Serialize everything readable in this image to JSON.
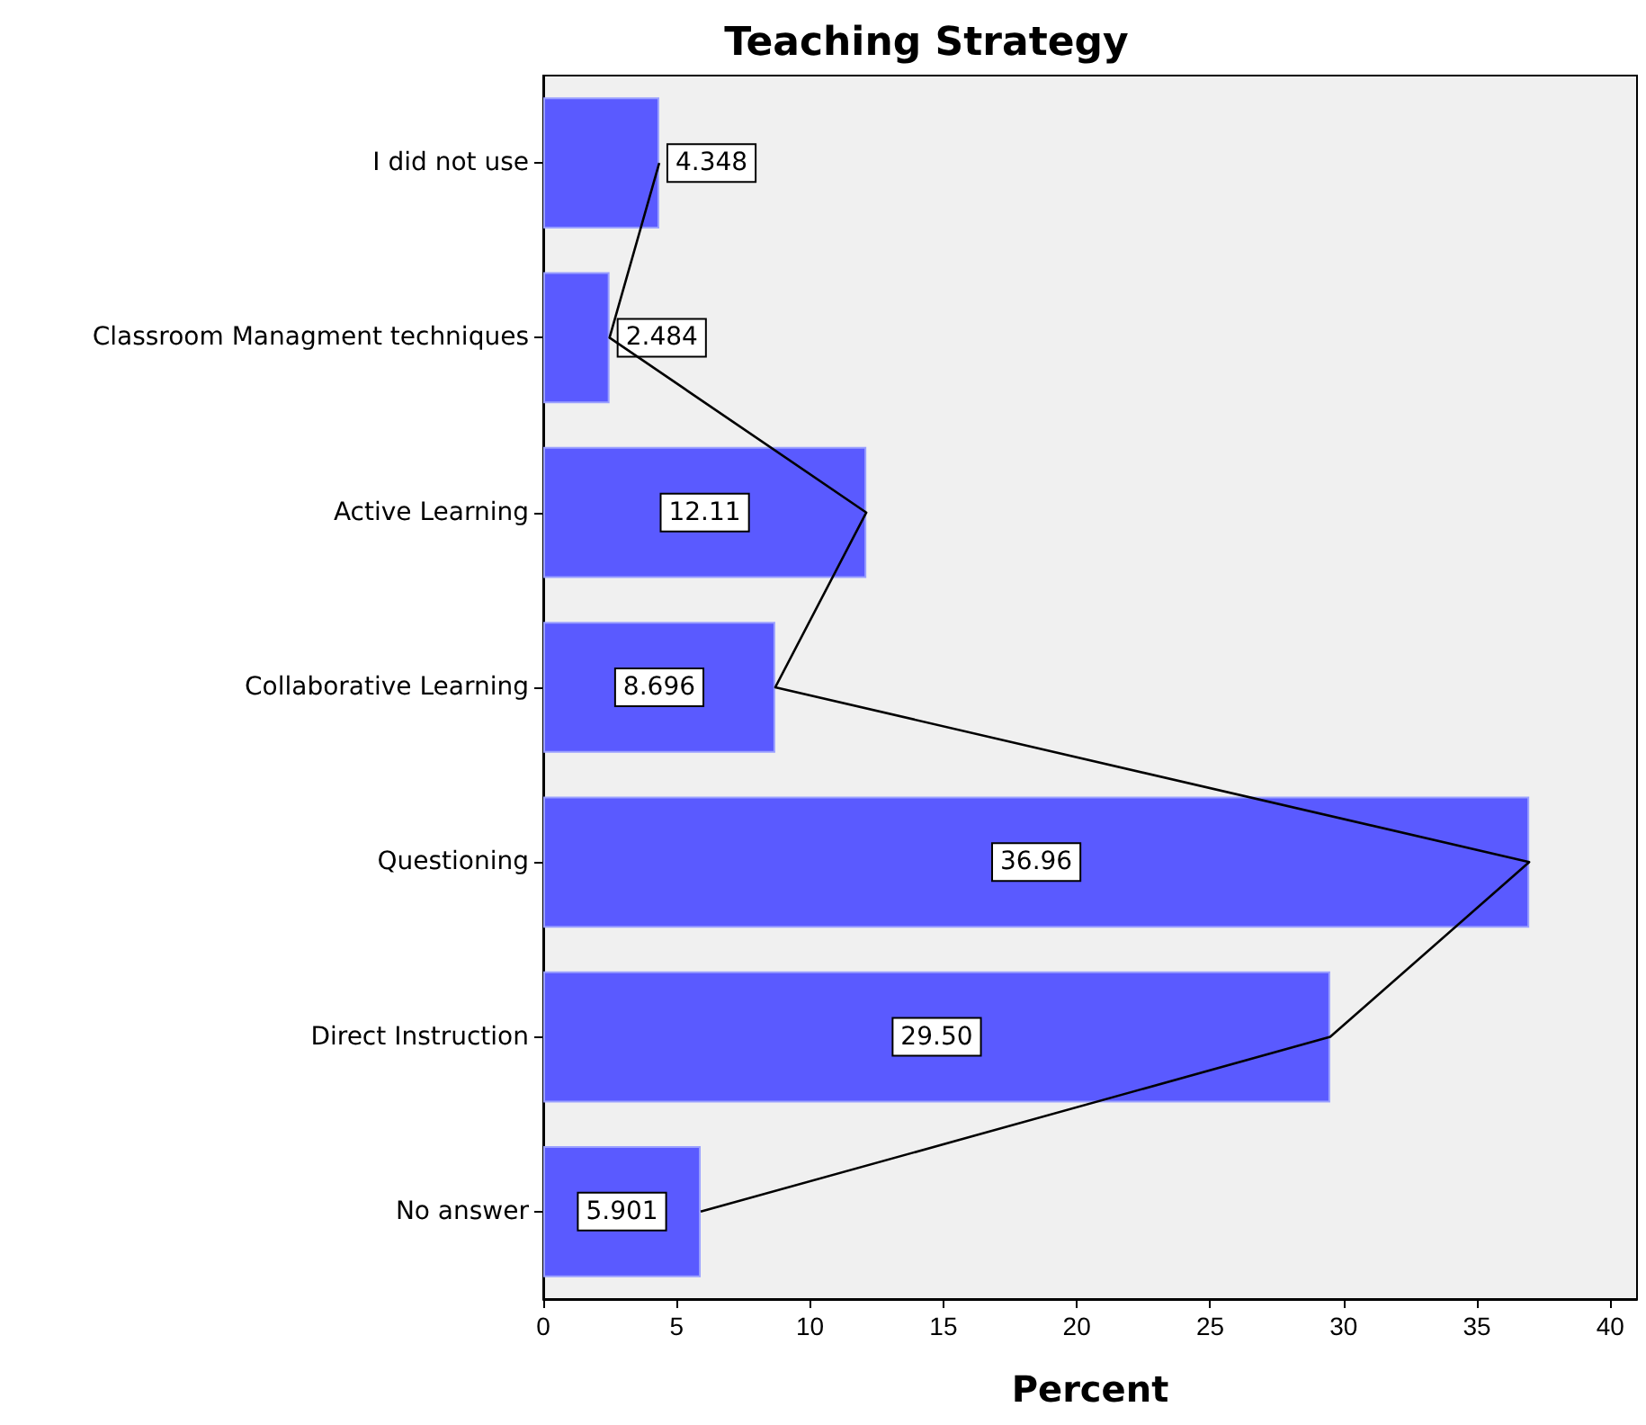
{
  "chart_data": {
    "type": "bar",
    "orientation": "horizontal",
    "title": "Teaching Strategy",
    "xlabel": "Percent",
    "categories": [
      "I did not use",
      "Classroom Managment techniques",
      "Active Learning",
      "Collaborative Learning",
      "Questioning",
      "Direct Instruction",
      "No answer"
    ],
    "series": [
      {
        "color": "#5a5aff",
        "values": [
          4.348,
          2.484,
          12.11,
          8.696,
          36.96,
          29.5,
          5.901
        ],
        "value_labels": [
          "4.348",
          "2.484",
          "12.11",
          "8.696",
          "36.96",
          "29.50",
          "5.901"
        ]
      },
      {
        "type": "line",
        "color": "#000000",
        "values": [
          4.348,
          2.484,
          12.11,
          8.696,
          36.96,
          29.5,
          5.901
        ],
        "marker": "none"
      }
    ],
    "xlim": [
      0,
      41
    ],
    "xticks": [
      0,
      5,
      10,
      15,
      20,
      25,
      30,
      35,
      40
    ],
    "grid": false
  }
}
